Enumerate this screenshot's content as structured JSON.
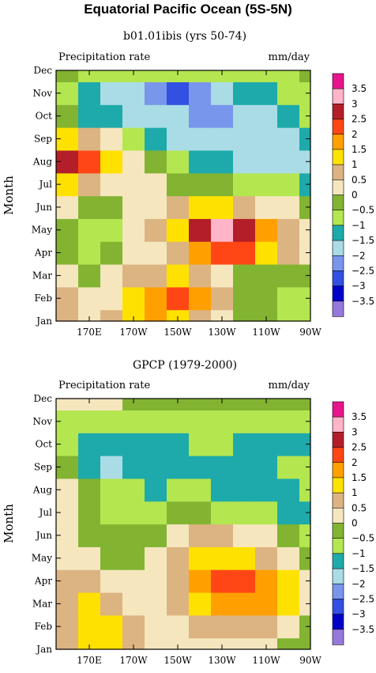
{
  "title": "Equatorial Pacific Ocean (5S-5N)",
  "chart_data": [
    {
      "type": "heatmap",
      "subtitle": "b01.01ibis (yrs 50-74)",
      "left_label": "Precipitation rate",
      "right_label": "mm/day",
      "ylabel": "Month",
      "xticks": [
        "170E",
        "170W",
        "150W",
        "130W",
        "110W",
        "90W"
      ],
      "yticks": [
        "Jan",
        "Feb",
        "Mar",
        "Apr",
        "May",
        "Jun",
        "Jul",
        "Aug",
        "Sep",
        "Oct",
        "Nov",
        "Dec"
      ],
      "xlim": [
        "155E",
        "90W"
      ],
      "ylim": [
        "Jan",
        "Dec"
      ],
      "grid_columns": [
        "160E",
        "170E",
        "180",
        "170W",
        "160W",
        "150W",
        "140W",
        "130W",
        "120W",
        "110W",
        "100W",
        "90W"
      ],
      "values": [
        [
          0.8,
          0.4,
          0.6,
          1.2,
          1.6,
          1.3,
          0.7,
          0.2,
          -0.3,
          -0.5,
          -0.8,
          -0.9
        ],
        [
          0.6,
          0.3,
          0.4,
          1.1,
          1.8,
          2.1,
          1.6,
          0.5,
          -0.1,
          -0.5,
          -0.7,
          -0.8
        ],
        [
          0.2,
          -0.1,
          0.2,
          0.6,
          0.9,
          1.0,
          0.6,
          0.1,
          -0.4,
          -0.4,
          -0.4,
          -0.2
        ],
        [
          -0.3,
          -0.7,
          -0.5,
          0.2,
          0.4,
          0.9,
          1.7,
          2.2,
          2.0,
          1.1,
          0.5,
          0.1
        ],
        [
          -0.4,
          -0.9,
          -0.6,
          0.1,
          0.6,
          1.4,
          2.6,
          3.4,
          2.8,
          1.7,
          0.7,
          0.2
        ],
        [
          0.1,
          -0.2,
          -0.4,
          0.1,
          0.3,
          0.9,
          1.2,
          1.1,
          0.8,
          0.4,
          0.1,
          -0.1
        ],
        [
          1.1,
          0.6,
          0.3,
          0.2,
          0.1,
          -0.2,
          -0.4,
          -0.5,
          -0.6,
          -0.8,
          -0.9,
          -1.1
        ],
        [
          2.5,
          2.3,
          1.2,
          0.2,
          -0.5,
          -1.0,
          -1.3,
          -1.5,
          -1.7,
          -1.8,
          -1.8,
          -1.6
        ],
        [
          1.4,
          0.9,
          0.2,
          -0.6,
          -1.2,
          -1.7,
          -1.8,
          -1.9,
          -1.9,
          -1.8,
          -1.6,
          -1.4
        ],
        [
          -0.4,
          -1.1,
          -1.3,
          -1.6,
          -1.8,
          -2.0,
          -2.1,
          -2.1,
          -1.9,
          -1.6,
          -1.2,
          -0.9
        ],
        [
          -1.0,
          -1.4,
          -1.6,
          -1.8,
          -2.3,
          -2.6,
          -2.3,
          -1.9,
          -1.5,
          -1.1,
          -0.8,
          -0.7
        ],
        [
          -0.5,
          -0.6,
          -0.7,
          -0.8,
          -0.8,
          -0.9,
          -0.9,
          -0.8,
          -0.7,
          -0.6,
          -0.6,
          -0.5
        ]
      ]
    },
    {
      "type": "heatmap",
      "subtitle": "GPCP (1979-2000)",
      "left_label": "Precipitation rate",
      "right_label": "mm/day",
      "ylabel": "Month",
      "xticks": [
        "170E",
        "170W",
        "150W",
        "130W",
        "110W",
        "90W"
      ],
      "yticks": [
        "Jan",
        "Feb",
        "Mar",
        "Apr",
        "May",
        "Jun",
        "Jul",
        "Aug",
        "Sep",
        "Oct",
        "Nov",
        "Dec"
      ],
      "xlim": [
        "155E",
        "90W"
      ],
      "ylim": [
        "Jan",
        "Dec"
      ],
      "grid_columns": [
        "160E",
        "170E",
        "180",
        "170W",
        "160W",
        "150W",
        "140W",
        "130W",
        "120W",
        "110W",
        "100W",
        "90W"
      ],
      "values": [
        [
          0.8,
          1.2,
          1.1,
          0.6,
          0.3,
          0.3,
          0.4,
          0.2,
          0.1,
          0.0,
          -0.1,
          -0.3
        ],
        [
          0.9,
          1.1,
          1.0,
          0.7,
          0.3,
          0.4,
          0.7,
          0.9,
          0.8,
          0.5,
          0.2,
          -0.2
        ],
        [
          0.8,
          1.0,
          0.7,
          0.4,
          0.3,
          0.7,
          1.3,
          1.8,
          1.9,
          1.6,
          1.0,
          0.2
        ],
        [
          0.5,
          0.6,
          0.4,
          0.2,
          0.4,
          0.9,
          1.6,
          2.1,
          2.0,
          1.6,
          1.0,
          0.2
        ],
        [
          0.2,
          0.1,
          -0.1,
          -0.2,
          0.1,
          0.6,
          1.0,
          1.2,
          1.1,
          0.8,
          0.4,
          -0.3
        ],
        [
          0.0,
          -0.1,
          -0.4,
          -0.5,
          -0.3,
          0.2,
          0.5,
          0.5,
          0.4,
          0.1,
          -0.3,
          -0.7
        ],
        [
          0.1,
          -0.4,
          -0.7,
          -0.8,
          -0.8,
          -0.5,
          -0.4,
          -0.6,
          -0.8,
          -1.0,
          -1.2,
          -1.1
        ],
        [
          0.3,
          -0.5,
          -0.9,
          -1.0,
          -1.1,
          -1.0,
          -1.0,
          -1.1,
          -1.2,
          -1.2,
          -1.2,
          -1.0
        ],
        [
          -0.5,
          -1.3,
          -1.8,
          -1.4,
          -1.2,
          -1.1,
          -1.1,
          -1.1,
          -1.2,
          -1.1,
          -1.0,
          -1.0
        ],
        [
          -0.9,
          -1.1,
          -1.2,
          -1.2,
          -1.1,
          -1.1,
          -1.0,
          -1.0,
          -1.1,
          -1.1,
          -1.2,
          -1.2
        ],
        [
          -1.0,
          -0.8,
          -0.7,
          -0.8,
          -0.8,
          -0.8,
          -0.8,
          -0.7,
          -0.6,
          -0.6,
          -0.6,
          -0.6
        ],
        [
          0.3,
          0.4,
          0.1,
          -0.2,
          -0.4,
          -0.5,
          -0.5,
          -0.5,
          -0.5,
          -0.5,
          -0.5,
          -0.5
        ]
      ]
    }
  ],
  "legend": {
    "labels": [
      "3.5",
      "3",
      "2.5",
      "2",
      "1.5",
      "1",
      "0.5",
      "0",
      "−0.5",
      "−1",
      "−1.5",
      "−2",
      "−2.5",
      "−3",
      "−3.5"
    ],
    "levels": [
      3.5,
      3,
      2.5,
      2,
      1.5,
      1,
      0.5,
      0,
      -0.5,
      -1,
      -1.5,
      -2,
      -2.5,
      -3,
      -3.5
    ],
    "colors": [
      "#e8148c",
      "#ffb4c8",
      "#b41e28",
      "#ff4614",
      "#ffa000",
      "#ffe100",
      "#dcb482",
      "#f5e6be",
      "#82b432",
      "#b4e650",
      "#1eaaaa",
      "#aadce6",
      "#7896eb",
      "#3250e1",
      "#0000c8",
      "#9678dc"
    ]
  }
}
